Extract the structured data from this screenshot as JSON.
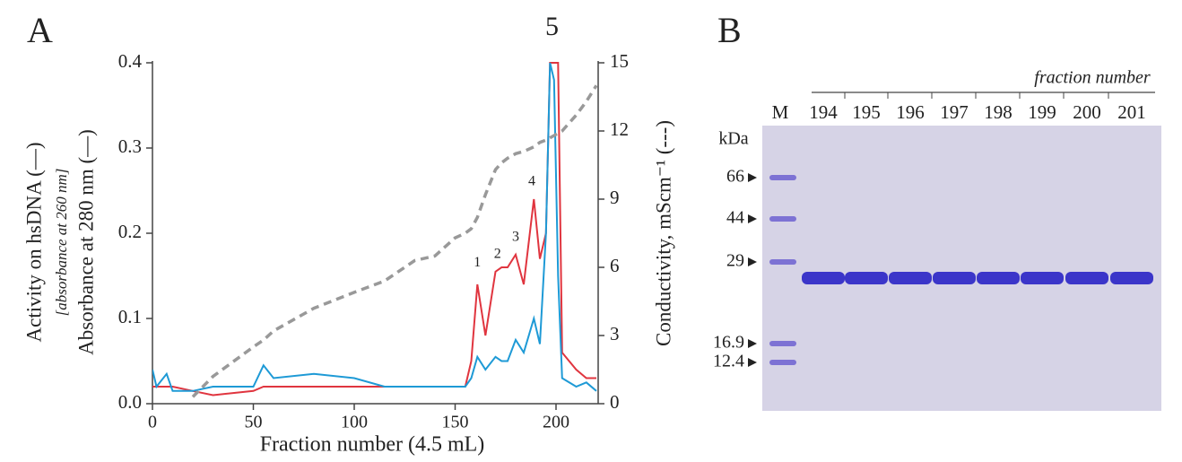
{
  "panel_labels": [
    "A",
    "B"
  ],
  "chart_data": {
    "type": "line",
    "x_label": "Fraction number (4.5 mL)",
    "y_label_note": "[absorbance at 260 nm]",
    "x": [
      0,
      2,
      7,
      10,
      20,
      30,
      50,
      55,
      60,
      80,
      100,
      115,
      130,
      140,
      150,
      155,
      158,
      161,
      165,
      170,
      173,
      176,
      180,
      184,
      189,
      192,
      195,
      197,
      199,
      201,
      203,
      210,
      215,
      220
    ],
    "series": [
      {
        "name": "Activity on hsDNA (—)",
        "color": "#e0353f",
        "dashed": false,
        "values": [
          0.02,
          0.02,
          0.02,
          0.02,
          0.015,
          0.01,
          0.015,
          0.02,
          0.02,
          0.02,
          0.02,
          0.02,
          0.02,
          0.02,
          0.02,
          0.02,
          0.05,
          0.14,
          0.08,
          0.155,
          0.16,
          0.16,
          0.175,
          0.14,
          0.24,
          0.17,
          0.2,
          0.4,
          0.4,
          0.4,
          0.06,
          0.04,
          0.03,
          0.03
        ]
      },
      {
        "name": "Absorbance at 280 nm (—)",
        "color": "#1e9ad6",
        "dashed": false,
        "values": [
          0.04,
          0.02,
          0.035,
          0.015,
          0.015,
          0.02,
          0.02,
          0.045,
          0.03,
          0.035,
          0.03,
          0.02,
          0.02,
          0.02,
          0.02,
          0.02,
          0.03,
          0.055,
          0.04,
          0.055,
          0.05,
          0.05,
          0.075,
          0.06,
          0.1,
          0.07,
          0.2,
          0.4,
          0.38,
          0.15,
          0.03,
          0.02,
          0.025,
          0.015
        ]
      },
      {
        "name": "Conductivity, mScm⁻¹ (---)",
        "color": "#999999",
        "dashed": true,
        "axis": "y2",
        "values": [
          null,
          null,
          null,
          null,
          0.3,
          1.2,
          2.5,
          2.8,
          3.2,
          4.2,
          4.9,
          5.4,
          6.3,
          6.5,
          7.3,
          7.5,
          7.7,
          8.2,
          9.2,
          10.3,
          10.6,
          10.8,
          11,
          11.1,
          11.3,
          11.5,
          11.6,
          11.7,
          11.8,
          11.9,
          12,
          12.7,
          13.3,
          14
        ]
      }
    ],
    "annotations": [
      {
        "label": "1",
        "x": 161,
        "y": 0.165
      },
      {
        "label": "2",
        "x": 171,
        "y": 0.175
      },
      {
        "label": "3",
        "x": 180,
        "y": 0.195
      },
      {
        "label": "4",
        "x": 188,
        "y": 0.26
      },
      {
        "label": "5",
        "x": 198,
        "y": 0.44
      }
    ],
    "xlim": [
      0,
      220
    ],
    "xticks": [
      0,
      50,
      100,
      150,
      200
    ],
    "ylim": [
      0,
      0.4
    ],
    "yticks": [
      {
        "value": 0,
        "label": "0.0"
      },
      0.1,
      0.2,
      0.3,
      0.4
    ],
    "y2lim": [
      0,
      15
    ],
    "y2ticks": [
      0,
      3,
      6,
      9,
      12,
      15
    ]
  },
  "gel": {
    "header": "fraction number",
    "unit": "kDa",
    "lanes": [
      "M",
      "194",
      "195",
      "196",
      "197",
      "198",
      "199",
      "200",
      "201"
    ],
    "markers": [
      "66",
      "44",
      "29",
      "16.9",
      "12.4"
    ]
  }
}
